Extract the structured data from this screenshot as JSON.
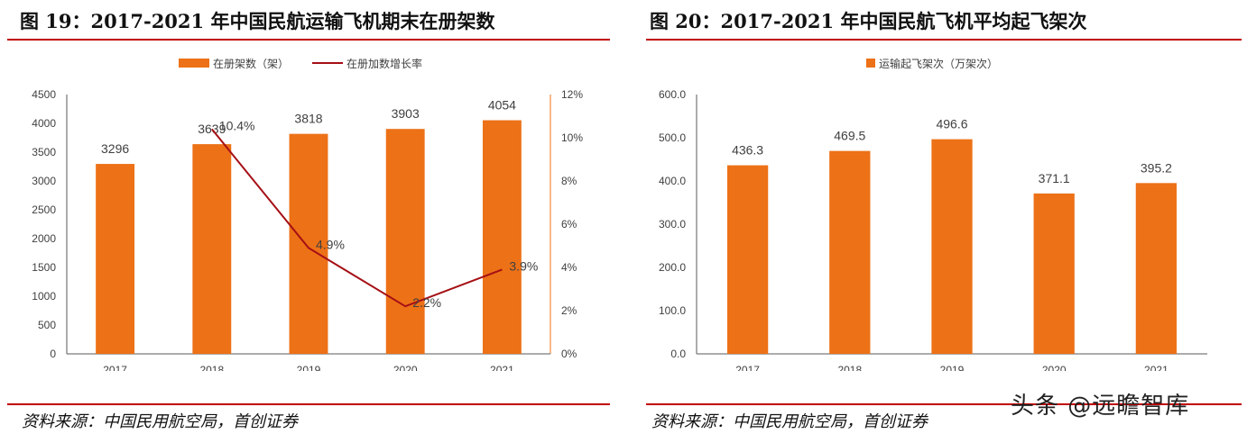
{
  "left": {
    "title": "图 19：2017-2021 年中国民航运输飞机期末在册架数",
    "source": "资料来源：中国民用航空局，首创证券"
  },
  "right": {
    "title": "图 20：2017-2021 年中国民航飞机平均起飞架次",
    "source": "资料来源：中国民用航空局，首创证券"
  },
  "watermark": "头条 @远瞻智库",
  "colors": {
    "bar": "#ED7117",
    "line": "#A50F15",
    "rule": "#C00000",
    "axis": "#595959"
  },
  "chart_data": [
    {
      "type": "bar",
      "categories": [
        "2017",
        "2018",
        "2019",
        "2020",
        "2021"
      ],
      "series": [
        {
          "name": "在册架数（架）",
          "type": "bar",
          "axis": "left",
          "values": [
            3296,
            3639,
            3818,
            3903,
            4054
          ],
          "labels": [
            "3296",
            "3639",
            "3818",
            "3903",
            "4054"
          ]
        },
        {
          "name": "在册加数增长率",
          "type": "line",
          "axis": "right",
          "values": [
            null,
            10.4,
            4.9,
            2.2,
            3.9
          ],
          "labels": [
            "",
            "10.4%",
            "4.9%",
            "2.2%",
            "3.9%"
          ]
        }
      ],
      "ylim": [
        0,
        4500
      ],
      "yticks": [
        0,
        500,
        1000,
        1500,
        2000,
        2500,
        3000,
        3500,
        4000,
        4500
      ],
      "ytick_labels": [
        "0",
        "500",
        "1000",
        "1500",
        "2000",
        "2500",
        "3000",
        "3500",
        "4000",
        "4500"
      ],
      "y2lim": [
        0,
        12
      ],
      "y2ticks": [
        0,
        2,
        4,
        6,
        8,
        10,
        12
      ],
      "y2tick_labels": [
        "0%",
        "2%",
        "4%",
        "6%",
        "8%",
        "10%",
        "12%"
      ],
      "legend": "top-center",
      "grid": false
    },
    {
      "type": "bar",
      "categories": [
        "2017",
        "2018",
        "2019",
        "2020",
        "2021"
      ],
      "series": [
        {
          "name": "运输起飞架次（万架次）",
          "type": "bar",
          "axis": "left",
          "values": [
            436.3,
            469.5,
            496.6,
            371.1,
            395.2
          ],
          "labels": [
            "436.3",
            "469.5",
            "496.6",
            "371.1",
            "395.2"
          ]
        }
      ],
      "ylim": [
        0,
        600
      ],
      "yticks": [
        0,
        100,
        200,
        300,
        400,
        500,
        600
      ],
      "ytick_labels": [
        "0.0",
        "100.0",
        "200.0",
        "300.0",
        "400.0",
        "500.0",
        "600.0"
      ],
      "legend": "top-center",
      "grid": false
    }
  ]
}
